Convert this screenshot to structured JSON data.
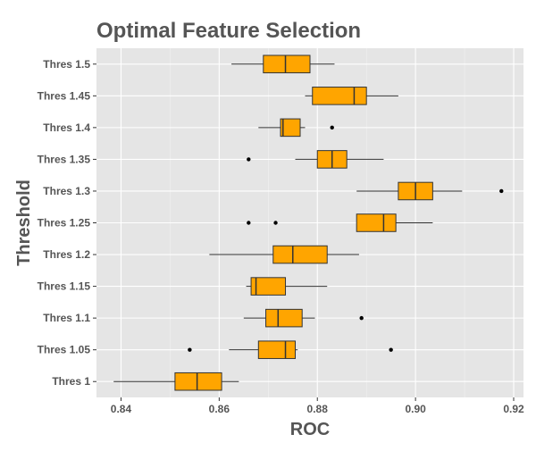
{
  "colors": {
    "panel_background": "#E5E5E5",
    "grid_major": "#FFFFFF",
    "grid_minor": "#F2F2F2",
    "box_fill": "#FFA500",
    "box_stroke": "#333333",
    "text": "#555555"
  },
  "chart_data": {
    "type": "boxplot",
    "orientation": "horizontal",
    "title": "Optimal Feature Selection",
    "xlabel": "ROC",
    "ylabel": "Threshold",
    "xlim": [
      0.835,
      0.922
    ],
    "x_ticks": [
      0.84,
      0.86,
      0.88,
      0.9,
      0.92
    ],
    "x_tick_labels": [
      "0.84",
      "0.86",
      "0.88",
      "0.90",
      "0.92"
    ],
    "grid": true,
    "legend": "none",
    "categories": [
      "Thres 1",
      "Thres 1.05",
      "Thres 1.1",
      "Thres 1.15",
      "Thres 1.2",
      "Thres 1.25",
      "Thres 1.3",
      "Thres 1.35",
      "Thres 1.4",
      "Thres 1.45",
      "Thres 1.5"
    ],
    "boxes": [
      {
        "category": "Thres 1",
        "whisker_low": 0.8385,
        "q1": 0.851,
        "median": 0.8555,
        "q3": 0.8605,
        "whisker_high": 0.864,
        "outliers": []
      },
      {
        "category": "Thres 1.05",
        "whisker_low": 0.862,
        "q1": 0.868,
        "median": 0.8735,
        "q3": 0.8755,
        "whisker_high": 0.876,
        "outliers": [
          0.854,
          0.895
        ]
      },
      {
        "category": "Thres 1.1",
        "whisker_low": 0.865,
        "q1": 0.8695,
        "median": 0.872,
        "q3": 0.8769,
        "whisker_high": 0.8795,
        "outliers": [
          0.889
        ]
      },
      {
        "category": "Thres 1.15",
        "whisker_low": 0.8655,
        "q1": 0.8665,
        "median": 0.8675,
        "q3": 0.8735,
        "whisker_high": 0.882,
        "outliers": []
      },
      {
        "category": "Thres 1.2",
        "whisker_low": 0.858,
        "q1": 0.871,
        "median": 0.875,
        "q3": 0.882,
        "whisker_high": 0.8885,
        "outliers": []
      },
      {
        "category": "Thres 1.25",
        "whisker_low": 0.888,
        "q1": 0.888,
        "median": 0.8935,
        "q3": 0.896,
        "whisker_high": 0.9035,
        "outliers": [
          0.866,
          0.8715
        ]
      },
      {
        "category": "Thres 1.3",
        "whisker_low": 0.888,
        "q1": 0.8965,
        "median": 0.9,
        "q3": 0.9035,
        "whisker_high": 0.9095,
        "outliers": [
          0.9175
        ]
      },
      {
        "category": "Thres 1.35",
        "whisker_low": 0.8755,
        "q1": 0.88,
        "median": 0.883,
        "q3": 0.886,
        "whisker_high": 0.8935,
        "outliers": [
          0.866
        ]
      },
      {
        "category": "Thres 1.4",
        "whisker_low": 0.868,
        "q1": 0.8725,
        "median": 0.873,
        "q3": 0.8765,
        "whisker_high": 0.8775,
        "outliers": [
          0.883
        ]
      },
      {
        "category": "Thres 1.45",
        "whisker_low": 0.8775,
        "q1": 0.879,
        "median": 0.8875,
        "q3": 0.89,
        "whisker_high": 0.8965,
        "outliers": []
      },
      {
        "category": "Thres 1.5",
        "whisker_low": 0.8625,
        "q1": 0.869,
        "median": 0.8735,
        "q3": 0.8785,
        "whisker_high": 0.8835,
        "outliers": []
      }
    ]
  }
}
